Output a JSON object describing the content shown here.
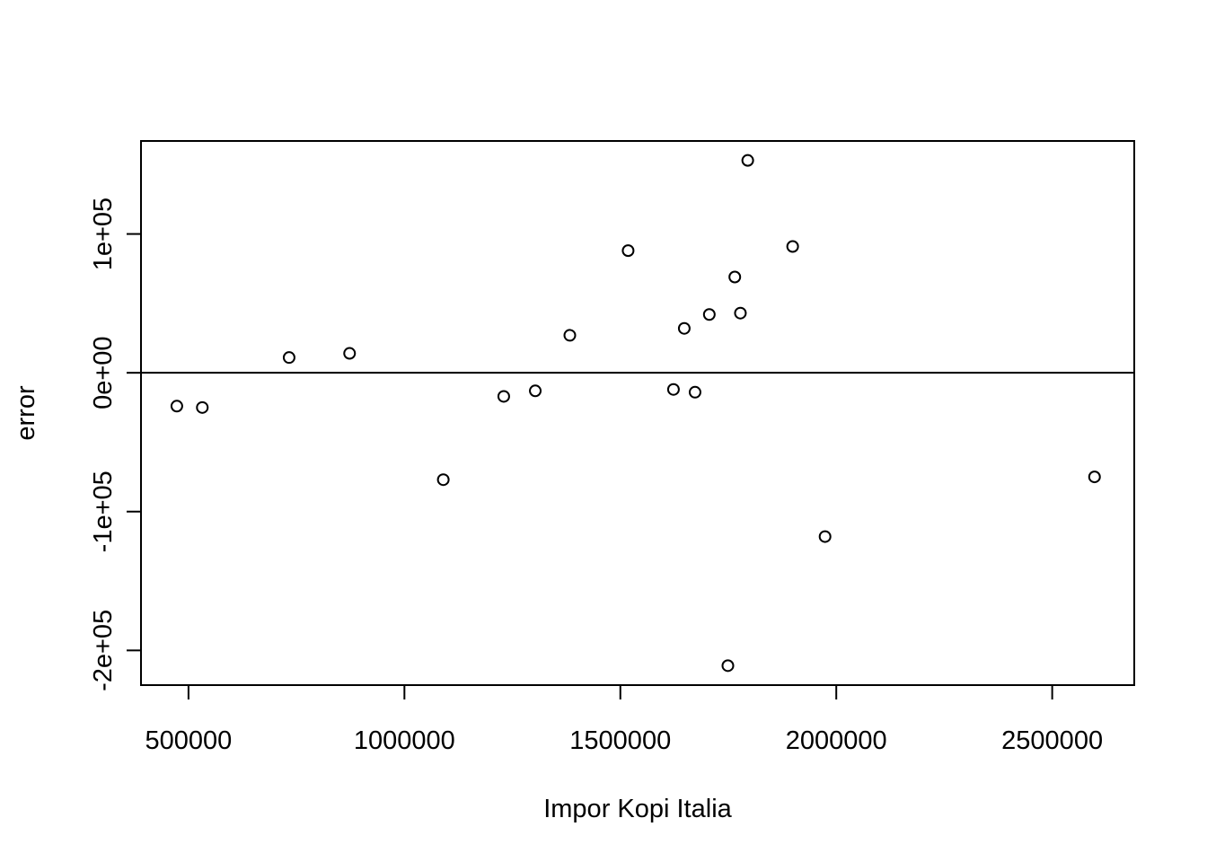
{
  "chart_data": {
    "type": "scatter",
    "title": "",
    "xlabel": "Impor Kopi Italia",
    "ylabel": "error",
    "xlim": [
      390000,
      2690000
    ],
    "ylim": [
      -225000,
      167000
    ],
    "x_ticks": [
      500000,
      1000000,
      1500000,
      2000000,
      2500000
    ],
    "x_tick_labels": [
      "500000",
      "1000000",
      "1500000",
      "2000000",
      "2500000"
    ],
    "y_ticks": [
      -200000,
      -100000,
      0,
      100000
    ],
    "y_tick_labels": [
      "-2e+05",
      "-1e+05",
      "0e+00",
      "1e+05"
    ],
    "reference_line": {
      "type": "horizontal",
      "y": 0
    },
    "grid": false,
    "legend": "none",
    "marker": "open-circle",
    "points": [
      {
        "x": 473000,
        "y": -24000
      },
      {
        "x": 532000,
        "y": -25000
      },
      {
        "x": 733000,
        "y": 11000
      },
      {
        "x": 873000,
        "y": 14000
      },
      {
        "x": 1090000,
        "y": -77000
      },
      {
        "x": 1230000,
        "y": -17000
      },
      {
        "x": 1303000,
        "y": -13000
      },
      {
        "x": 1383000,
        "y": 27000
      },
      {
        "x": 1518000,
        "y": 88000
      },
      {
        "x": 1623000,
        "y": -12000
      },
      {
        "x": 1648000,
        "y": 32000
      },
      {
        "x": 1673000,
        "y": -14000
      },
      {
        "x": 1706000,
        "y": 42000
      },
      {
        "x": 1749000,
        "y": -211000
      },
      {
        "x": 1765000,
        "y": 69000
      },
      {
        "x": 1778000,
        "y": 43000
      },
      {
        "x": 1795000,
        "y": 153000
      },
      {
        "x": 1899000,
        "y": 91000
      },
      {
        "x": 1974000,
        "y": -118000
      },
      {
        "x": 2598000,
        "y": -75000
      }
    ]
  }
}
